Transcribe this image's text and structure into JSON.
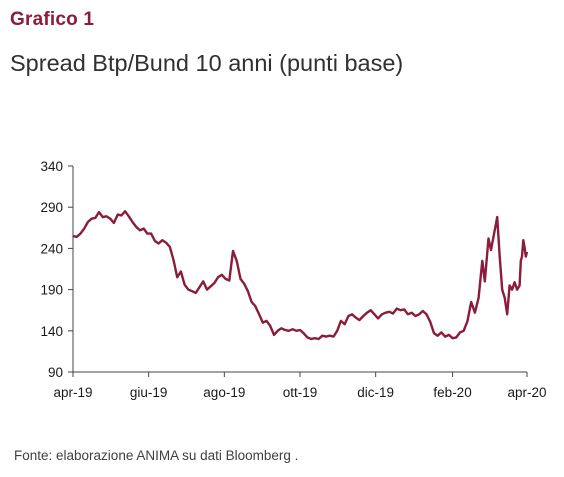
{
  "label": "Grafico 1",
  "chart_data": {
    "type": "line",
    "title": "Spread Btp/Bund 10 anni (punti base)",
    "xlabel": "",
    "ylabel": "",
    "ylim": [
      90,
      340
    ],
    "yticks": [
      90,
      140,
      190,
      240,
      290,
      340
    ],
    "xlim": [
      "2019-04-01",
      "2020-04-01"
    ],
    "xticks": [
      {
        "date": "2019-04-01",
        "label": "apr-19"
      },
      {
        "date": "2019-06-01",
        "label": "giu-19"
      },
      {
        "date": "2019-08-01",
        "label": "ago-19"
      },
      {
        "date": "2019-10-01",
        "label": "ott-19"
      },
      {
        "date": "2019-12-01",
        "label": "dic-19"
      },
      {
        "date": "2020-02-01",
        "label": "feb-20"
      },
      {
        "date": "2020-04-01",
        "label": "apr-20"
      }
    ],
    "grid": false,
    "line_color": "#8b1c3a",
    "series": [
      {
        "points": [
          [
            "2019-04-01",
            255
          ],
          [
            "2019-04-04",
            254
          ],
          [
            "2019-04-07",
            258
          ],
          [
            "2019-04-10",
            264
          ],
          [
            "2019-04-13",
            272
          ],
          [
            "2019-04-16",
            276
          ],
          [
            "2019-04-19",
            277
          ],
          [
            "2019-04-22",
            284
          ],
          [
            "2019-04-25",
            278
          ],
          [
            "2019-04-28",
            279
          ],
          [
            "2019-05-01",
            276
          ],
          [
            "2019-05-04",
            271
          ],
          [
            "2019-05-07",
            281
          ],
          [
            "2019-05-10",
            280
          ],
          [
            "2019-05-13",
            285
          ],
          [
            "2019-05-16",
            279
          ],
          [
            "2019-05-19",
            272
          ],
          [
            "2019-05-22",
            266
          ],
          [
            "2019-05-25",
            262
          ],
          [
            "2019-05-28",
            264
          ],
          [
            "2019-05-31",
            258
          ],
          [
            "2019-06-03",
            258
          ],
          [
            "2019-06-06",
            249
          ],
          [
            "2019-06-09",
            246
          ],
          [
            "2019-06-12",
            250
          ],
          [
            "2019-06-15",
            247
          ],
          [
            "2019-06-18",
            242
          ],
          [
            "2019-06-21",
            226
          ],
          [
            "2019-06-24",
            205
          ],
          [
            "2019-06-27",
            212
          ],
          [
            "2019-06-30",
            196
          ],
          [
            "2019-07-03",
            190
          ],
          [
            "2019-07-06",
            188
          ],
          [
            "2019-07-09",
            186
          ],
          [
            "2019-07-12",
            193
          ],
          [
            "2019-07-15",
            200
          ],
          [
            "2019-07-18",
            190
          ],
          [
            "2019-07-21",
            194
          ],
          [
            "2019-07-24",
            198
          ],
          [
            "2019-07-27",
            205
          ],
          [
            "2019-07-30",
            208
          ],
          [
            "2019-08-02",
            203
          ],
          [
            "2019-08-05",
            201
          ],
          [
            "2019-08-08",
            237
          ],
          [
            "2019-08-11",
            225
          ],
          [
            "2019-08-14",
            203
          ],
          [
            "2019-08-17",
            197
          ],
          [
            "2019-08-20",
            188
          ],
          [
            "2019-08-23",
            175
          ],
          [
            "2019-08-26",
            170
          ],
          [
            "2019-08-29",
            160
          ],
          [
            "2019-09-01",
            150
          ],
          [
            "2019-09-04",
            152
          ],
          [
            "2019-09-07",
            146
          ],
          [
            "2019-09-10",
            135
          ],
          [
            "2019-09-13",
            140
          ],
          [
            "2019-09-16",
            143
          ],
          [
            "2019-09-19",
            141
          ],
          [
            "2019-09-22",
            140
          ],
          [
            "2019-09-25",
            142
          ],
          [
            "2019-09-28",
            140
          ],
          [
            "2019-10-01",
            141
          ],
          [
            "2019-10-04",
            137
          ],
          [
            "2019-10-07",
            132
          ],
          [
            "2019-10-10",
            130
          ],
          [
            "2019-10-13",
            131
          ],
          [
            "2019-10-16",
            130
          ],
          [
            "2019-10-19",
            134
          ],
          [
            "2019-10-22",
            133
          ],
          [
            "2019-10-25",
            134
          ],
          [
            "2019-10-28",
            133
          ],
          [
            "2019-10-31",
            140
          ],
          [
            "2019-11-03",
            152
          ],
          [
            "2019-11-06",
            148
          ],
          [
            "2019-11-09",
            158
          ],
          [
            "2019-11-12",
            160
          ],
          [
            "2019-11-15",
            156
          ],
          [
            "2019-11-18",
            153
          ],
          [
            "2019-11-21",
            158
          ],
          [
            "2019-11-24",
            162
          ],
          [
            "2019-11-27",
            165
          ],
          [
            "2019-11-30",
            160
          ],
          [
            "2019-12-03",
            155
          ],
          [
            "2019-12-06",
            160
          ],
          [
            "2019-12-09",
            162
          ],
          [
            "2019-12-12",
            163
          ],
          [
            "2019-12-15",
            161
          ],
          [
            "2019-12-18",
            167
          ],
          [
            "2019-12-21",
            165
          ],
          [
            "2019-12-24",
            166
          ],
          [
            "2019-12-27",
            160
          ],
          [
            "2019-12-30",
            162
          ],
          [
            "2020-01-02",
            158
          ],
          [
            "2020-01-05",
            160
          ],
          [
            "2020-01-08",
            164
          ],
          [
            "2020-01-11",
            160
          ],
          [
            "2020-01-14",
            151
          ],
          [
            "2020-01-17",
            137
          ],
          [
            "2020-01-20",
            134
          ],
          [
            "2020-01-23",
            138
          ],
          [
            "2020-01-26",
            133
          ],
          [
            "2020-01-29",
            135
          ],
          [
            "2020-02-01",
            131
          ],
          [
            "2020-02-04",
            132
          ],
          [
            "2020-02-07",
            138
          ],
          [
            "2020-02-10",
            140
          ],
          [
            "2020-02-13",
            152
          ],
          [
            "2020-02-16",
            175
          ],
          [
            "2020-02-19",
            162
          ],
          [
            "2020-02-22",
            180
          ],
          [
            "2020-02-25",
            225
          ],
          [
            "2020-02-27",
            200
          ],
          [
            "2020-03-01",
            252
          ],
          [
            "2020-03-03",
            238
          ],
          [
            "2020-03-06",
            262
          ],
          [
            "2020-03-08",
            278
          ],
          [
            "2020-03-10",
            230
          ],
          [
            "2020-03-12",
            190
          ],
          [
            "2020-03-14",
            180
          ],
          [
            "2020-03-16",
            160
          ],
          [
            "2020-03-18",
            195
          ],
          [
            "2020-03-20",
            190
          ],
          [
            "2020-03-22",
            199
          ],
          [
            "2020-03-24",
            190
          ],
          [
            "2020-03-26",
            195
          ],
          [
            "2020-03-27",
            225
          ],
          [
            "2020-03-28",
            230
          ],
          [
            "2020-03-29",
            250
          ],
          [
            "2020-03-30",
            242
          ],
          [
            "2020-03-31",
            230
          ],
          [
            "2020-04-01",
            236
          ]
        ]
      }
    ]
  },
  "source": "Fonte: elaborazione ANIMA su dati Bloomberg ."
}
